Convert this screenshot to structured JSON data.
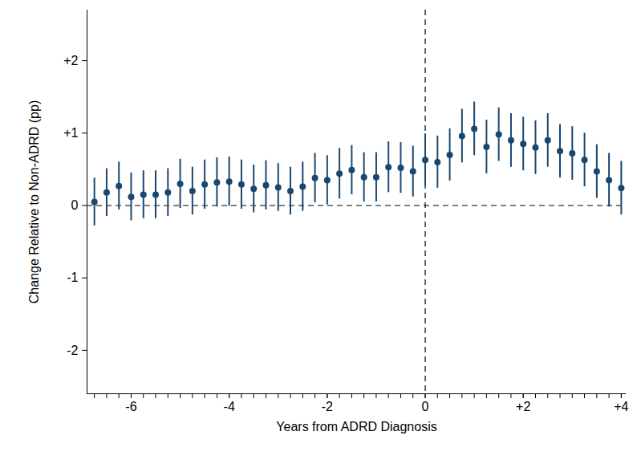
{
  "chart_data": {
    "type": "scatter",
    "x_label": "Years from ADRD Diagnosis",
    "y_label": "Change Relative to Non-ADRD (pp)",
    "x": [
      -6.75,
      -6.5,
      -6.25,
      -6,
      -5.75,
      -5.5,
      -5.25,
      -5,
      -4.75,
      -4.5,
      -4.25,
      -4,
      -3.75,
      -3.5,
      -3.25,
      -3,
      -2.75,
      -2.5,
      -2.25,
      -2,
      -1.75,
      -1.5,
      -1.25,
      -1,
      -0.75,
      -0.5,
      -0.25,
      0,
      0.25,
      0.5,
      0.75,
      1,
      1.25,
      1.5,
      1.75,
      2,
      2.25,
      2.5,
      2.75,
      3,
      3.25,
      3.5,
      3.75,
      4
    ],
    "values": [
      0.05,
      0.18,
      0.27,
      0.12,
      0.15,
      0.15,
      0.18,
      0.3,
      0.2,
      0.29,
      0.32,
      0.33,
      0.29,
      0.23,
      0.28,
      0.25,
      0.2,
      0.26,
      0.38,
      0.35,
      0.44,
      0.49,
      0.39,
      0.39,
      0.53,
      0.52,
      0.47,
      0.63,
      0.6,
      0.7,
      0.96,
      1.06,
      0.81,
      0.98,
      0.9,
      0.85,
      0.8,
      0.9,
      0.75,
      0.72,
      0.63,
      0.47,
      0.35,
      0.24
    ],
    "ci_lower": [
      -0.28,
      -0.15,
      -0.06,
      -0.21,
      -0.18,
      -0.18,
      -0.15,
      -0.04,
      -0.13,
      -0.05,
      -0.02,
      -0.01,
      -0.05,
      -0.1,
      -0.06,
      -0.08,
      -0.13,
      -0.08,
      0.04,
      0.01,
      0.09,
      0.15,
      0.05,
      0.05,
      0.18,
      0.17,
      0.12,
      0.27,
      0.24,
      0.34,
      0.59,
      0.69,
      0.44,
      0.61,
      0.53,
      0.48,
      0.43,
      0.53,
      0.38,
      0.35,
      0.26,
      0.1,
      -0.02,
      -0.13
    ],
    "ci_upper": [
      0.38,
      0.51,
      0.6,
      0.45,
      0.48,
      0.48,
      0.51,
      0.64,
      0.53,
      0.63,
      0.66,
      0.67,
      0.63,
      0.56,
      0.62,
      0.58,
      0.53,
      0.6,
      0.72,
      0.69,
      0.79,
      0.83,
      0.73,
      0.73,
      0.88,
      0.87,
      0.82,
      0.99,
      0.96,
      1.06,
      1.33,
      1.43,
      1.18,
      1.35,
      1.27,
      1.22,
      1.17,
      1.27,
      1.12,
      1.09,
      1.0,
      0.84,
      0.72,
      0.61
    ],
    "color": "#1a476f",
    "marker": "circle",
    "xlim": [
      -6.9,
      4.1
    ],
    "ylim": [
      -2.6,
      2.7
    ],
    "xticks": [
      -6,
      -4,
      -2,
      0,
      {
        "value": 2,
        "label": "+2"
      },
      {
        "value": 4,
        "label": "+4"
      }
    ],
    "yticks": [
      -2,
      -1,
      0,
      {
        "value": 1,
        "label": "+1"
      },
      {
        "value": 2,
        "label": "+2"
      }
    ],
    "hline": 0,
    "vline": 0,
    "grid": false
  }
}
